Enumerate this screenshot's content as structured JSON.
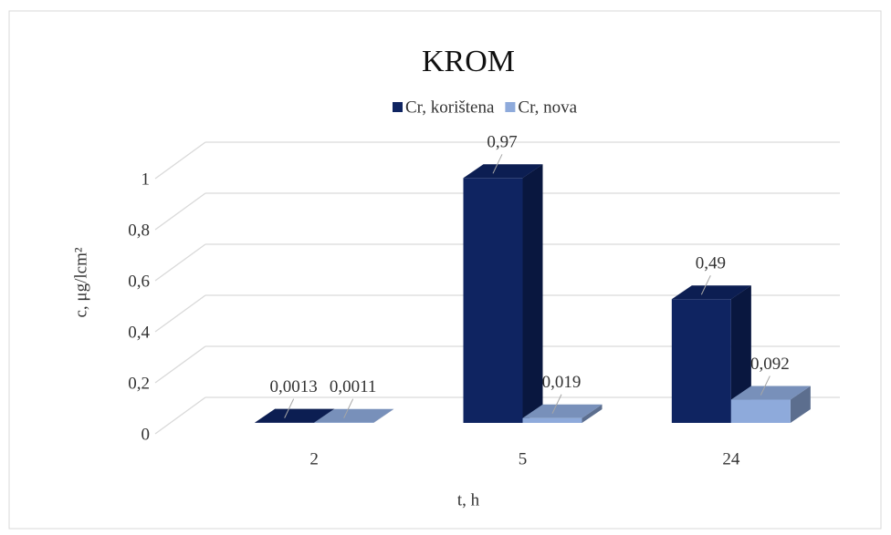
{
  "chart_data": {
    "type": "bar3d",
    "title": "KROM",
    "x_label": "t, h",
    "y_label": "c, μg/lcm²",
    "categories": [
      "2",
      "5",
      "24"
    ],
    "series": [
      {
        "name": "Cr, korištena",
        "color": "#0f2461",
        "values": [
          0.0013,
          0.97,
          0.49
        ],
        "value_labels": [
          "0,0013",
          "0,97",
          "0,49"
        ]
      },
      {
        "name": "Cr, nova",
        "color": "#8eaadb",
        "values": [
          0.0011,
          0.019,
          0.092
        ],
        "value_labels": [
          "0,0011",
          "0,019",
          "0,092"
        ]
      }
    ],
    "ylim": [
      0,
      1
    ],
    "yticks": [
      0,
      {
        "value": 0.2,
        "label": "0,2"
      },
      {
        "value": 0.4,
        "label": "0,4"
      },
      {
        "value": 0.6,
        "label": "0,6"
      },
      {
        "value": 0.8,
        "label": "0,8"
      },
      1
    ],
    "grid": true,
    "legend": "top"
  }
}
